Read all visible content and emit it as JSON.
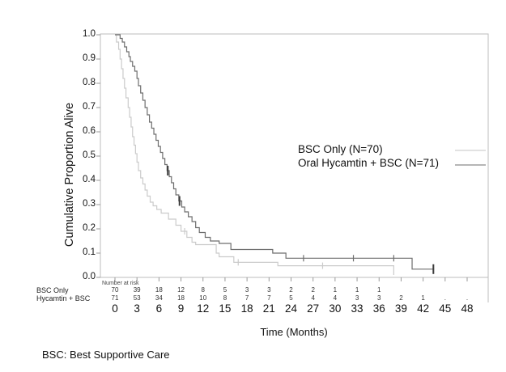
{
  "chart_data": {
    "type": "line",
    "subtype": "kaplan-meier-step-curves",
    "xlabel": "Time (Months)",
    "ylabel": "Cumulative Proportion Alive",
    "xlim": [
      0,
      48
    ],
    "ylim": [
      0.0,
      1.0
    ],
    "xticks": [
      0,
      3,
      6,
      9,
      12,
      15,
      18,
      21,
      24,
      27,
      30,
      33,
      36,
      39,
      42,
      45,
      48
    ],
    "yticks": [
      "0.0",
      "0.1",
      "0.2",
      "0.3",
      "0.4",
      "0.5",
      "0.6",
      "0.7",
      "0.8",
      "0.9",
      "1.0"
    ],
    "grid": false,
    "legend_position": "center-right",
    "series": [
      {
        "name": "BSC Only (N=70)",
        "n": 70,
        "color": "#cbcbcb",
        "legend_color": "#d9d9d9",
        "start": [
          0,
          1.0
        ],
        "drops": [
          [
            0.2,
            0.97
          ],
          [
            0.5,
            0.94
          ],
          [
            0.7,
            0.9
          ],
          [
            0.9,
            0.86
          ],
          [
            1.1,
            0.82
          ],
          [
            1.3,
            0.78
          ],
          [
            1.5,
            0.74
          ],
          [
            1.8,
            0.7
          ],
          [
            2.0,
            0.66
          ],
          [
            2.2,
            0.62
          ],
          [
            2.4,
            0.58
          ],
          [
            2.6,
            0.545
          ],
          [
            2.8,
            0.51
          ],
          [
            3.0,
            0.475
          ],
          [
            3.2,
            0.44
          ],
          [
            3.5,
            0.41
          ],
          [
            3.8,
            0.385
          ],
          [
            4.1,
            0.36
          ],
          [
            4.4,
            0.335
          ],
          [
            4.8,
            0.31
          ],
          [
            5.2,
            0.295
          ],
          [
            5.7,
            0.28
          ],
          [
            6.3,
            0.265
          ],
          [
            7.3,
            0.24
          ],
          [
            8.3,
            0.215
          ],
          [
            9.0,
            0.19
          ],
          [
            9.8,
            0.165
          ],
          [
            10.5,
            0.145
          ],
          [
            11.0,
            0.135
          ],
          [
            13.8,
            0.1
          ],
          [
            14.2,
            0.085
          ],
          [
            16.2,
            0.062
          ],
          [
            22.2,
            0.048
          ],
          [
            38.0,
            0.01
          ]
        ],
        "end_time": 38.0,
        "censors": [
          [
            9.5,
            0.19,
            0
          ],
          [
            16.8,
            0.062,
            0
          ],
          [
            28.3,
            0.048,
            0
          ]
        ]
      },
      {
        "name": "Oral Hycamtin + BSC (N=71)",
        "n": 71,
        "color": "#6e6e6e",
        "legend_color": "#9e9e9e",
        "start": [
          0,
          1.0
        ],
        "drops": [
          [
            0.7,
            0.985
          ],
          [
            1.0,
            0.97
          ],
          [
            1.3,
            0.95
          ],
          [
            1.6,
            0.93
          ],
          [
            1.9,
            0.91
          ],
          [
            2.1,
            0.89
          ],
          [
            2.4,
            0.87
          ],
          [
            2.7,
            0.85
          ],
          [
            3.0,
            0.82
          ],
          [
            3.2,
            0.79
          ],
          [
            3.5,
            0.76
          ],
          [
            3.8,
            0.73
          ],
          [
            4.1,
            0.7
          ],
          [
            4.4,
            0.67
          ],
          [
            4.7,
            0.64
          ],
          [
            5.0,
            0.615
          ],
          [
            5.3,
            0.59
          ],
          [
            5.6,
            0.565
          ],
          [
            5.9,
            0.54
          ],
          [
            6.2,
            0.515
          ],
          [
            6.5,
            0.49
          ],
          [
            6.8,
            0.465
          ],
          [
            7.1,
            0.44
          ],
          [
            7.4,
            0.415
          ],
          [
            7.7,
            0.39
          ],
          [
            8.0,
            0.365
          ],
          [
            8.3,
            0.34
          ],
          [
            8.7,
            0.315
          ],
          [
            9.1,
            0.29
          ],
          [
            9.5,
            0.27
          ],
          [
            10.0,
            0.25
          ],
          [
            10.5,
            0.23
          ],
          [
            11.0,
            0.205
          ],
          [
            11.5,
            0.185
          ],
          [
            12.3,
            0.165
          ],
          [
            13.0,
            0.15
          ],
          [
            14.2,
            0.14
          ],
          [
            15.8,
            0.115
          ],
          [
            21.5,
            0.1
          ],
          [
            23.3,
            0.079
          ],
          [
            40.5,
            0.034
          ]
        ],
        "end_time": 43.5,
        "censors": [
          [
            7.2,
            0.44,
            1
          ],
          [
            8.8,
            0.315,
            1
          ],
          [
            25.7,
            0.079,
            0
          ],
          [
            32.5,
            0.079,
            0
          ],
          [
            38.0,
            0.079,
            0
          ],
          [
            43.4,
            0.034,
            1
          ]
        ]
      }
    ],
    "risk_table": {
      "title": "Number at risk",
      "rows": [
        {
          "label": "BSC Only",
          "values": [
            "70",
            "39",
            "18",
            "12",
            "8",
            "5",
            "3",
            "3",
            "2",
            "2",
            "1",
            "1",
            "1",
            "",
            "",
            "",
            ""
          ]
        },
        {
          "label": "Hycamtin + BSC",
          "values": [
            "71",
            "53",
            "34",
            "18",
            "10",
            "8",
            "7",
            "7",
            "5",
            "4",
            "4",
            "3",
            "3",
            "2",
            "1",
            ".",
            "."
          ]
        }
      ]
    }
  },
  "footnote": "BSC: Best Supportive Care"
}
